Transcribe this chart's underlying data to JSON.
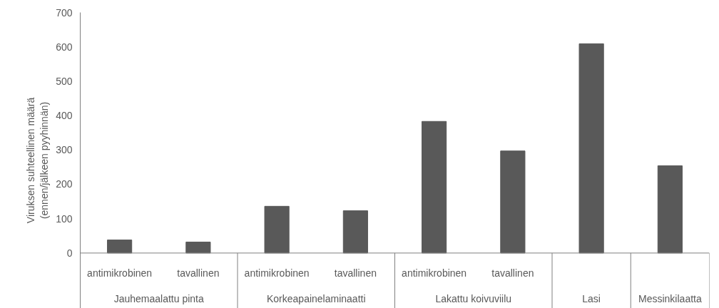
{
  "chart_data": {
    "type": "bar",
    "ylabel": "Viruksen suhteellinen määrä\n(ennen/jälkeen pyyhinnän)",
    "categories": [
      "antimikrobinen",
      "tavallinen",
      "antimikrobinen",
      "tavallinen",
      "antimikrobinen",
      "tavallinen",
      null,
      null
    ],
    "annotations": [
      "Jauhemaalattu pinta",
      "Korkeapainelaminaatti",
      "Lakattu koivuviilu",
      "Lasi",
      "Messinkilaatta"
    ],
    "values": [
      38,
      32,
      136,
      123,
      383,
      297,
      609,
      254
    ],
    "color": "#595959",
    "ylim": [
      0,
      700
    ],
    "yticks": [
      0,
      100,
      200,
      300,
      400,
      500,
      600,
      700
    ],
    "grid": false
  }
}
